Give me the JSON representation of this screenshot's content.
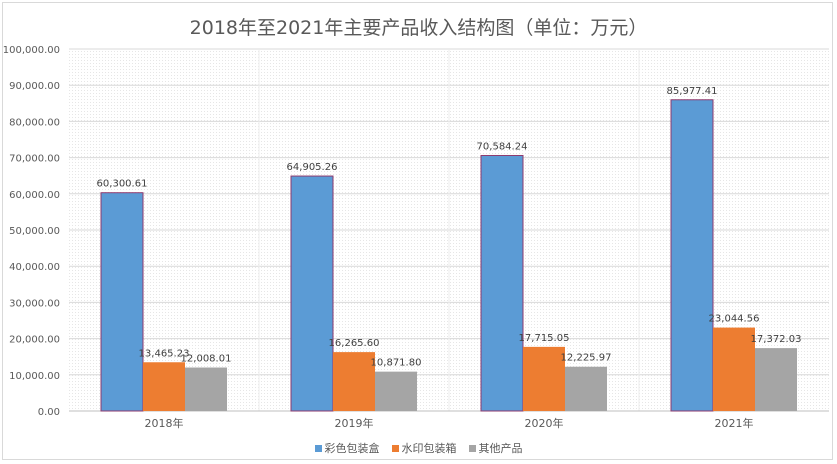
{
  "chart_data": {
    "type": "bar",
    "title": "2018年至2021年主要产品收入结构图（单位：万元）",
    "categories": [
      "2018年",
      "2019年",
      "2020年",
      "2021年"
    ],
    "series": [
      {
        "name": "彩色包装盒",
        "color": "#5b9bd5",
        "values": [
          60300.61,
          64905.26,
          70584.24,
          85977.41
        ],
        "labels": [
          "60,300.61",
          "64,905.26",
          "70,584.24",
          "85,977.41"
        ]
      },
      {
        "name": "水印包装箱",
        "color": "#ed7d31",
        "values": [
          13465.23,
          16265.6,
          17715.05,
          23044.56
        ],
        "labels": [
          "13,465.23",
          "16,265.60",
          "17,715.05",
          "23,044.56"
        ]
      },
      {
        "name": "其他产品",
        "color": "#a5a5a5",
        "values": [
          12008.01,
          10871.8,
          12225.97,
          17372.03
        ],
        "labels": [
          "12,008.01",
          "10,871.80",
          "12,225.97",
          "17,372.03"
        ]
      }
    ],
    "ylim": [
      0,
      100000
    ],
    "yticks": [
      "0.00",
      "10,000.00",
      "20,000.00",
      "30,000.00",
      "40,000.00",
      "50,000.00",
      "60,000.00",
      "70,000.00",
      "80,000.00",
      "90,000.00",
      "100,000.00"
    ],
    "grid": true,
    "legend_position": "bottom"
  }
}
